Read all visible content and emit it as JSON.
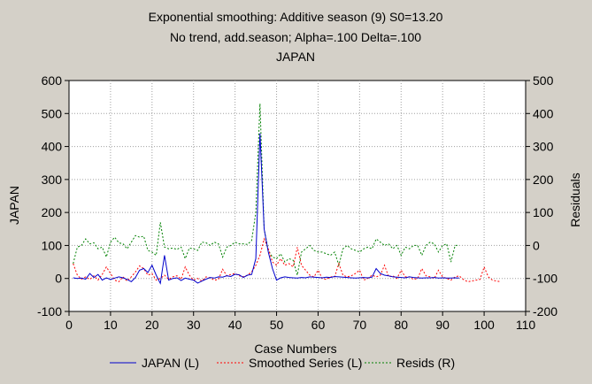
{
  "chart_data": {
    "type": "line",
    "title": "Exponential smoothing: Additive season (9) S0=13.20",
    "subtitle": "No trend, add.season; Alpha=.100  Delta=.100",
    "subtitle2": "JAPAN",
    "xlabel": "Case Numbers",
    "ylabel": "JAPAN",
    "ylabel_right": "Residuals",
    "xlim": [
      0,
      110
    ],
    "ylim": [
      -100,
      600
    ],
    "ylim_right": [
      -200,
      500
    ],
    "x_ticks": [
      0,
      10,
      20,
      30,
      40,
      50,
      60,
      70,
      80,
      90,
      100,
      110
    ],
    "y_ticks": [
      -100,
      0,
      100,
      200,
      300,
      400,
      500,
      600
    ],
    "y_ticks_right": [
      -200,
      -100,
      0,
      100,
      200,
      300,
      400,
      500
    ],
    "grid": true,
    "legend_position": "bottom",
    "series": [
      {
        "name": "JAPAN (L)",
        "axis": "left",
        "color": "#0000cc",
        "style": "solid",
        "x": [
          1,
          2,
          3,
          4,
          5,
          6,
          7,
          8,
          9,
          10,
          11,
          12,
          13,
          14,
          15,
          16,
          17,
          18,
          19,
          20,
          21,
          22,
          23,
          24,
          25,
          26,
          27,
          28,
          29,
          30,
          31,
          32,
          33,
          34,
          35,
          36,
          37,
          38,
          39,
          40,
          41,
          42,
          43,
          44,
          45,
          46,
          47,
          48,
          49,
          50,
          51,
          52,
          53,
          54,
          55,
          56,
          57,
          58,
          59,
          60,
          61,
          62,
          63,
          64,
          65,
          66,
          67,
          68,
          69,
          70,
          71,
          72,
          73,
          74,
          75,
          76,
          77,
          78,
          79,
          80,
          81,
          82,
          83,
          84,
          85,
          86,
          87,
          88,
          89,
          90,
          91,
          92,
          93,
          94
        ],
        "y": [
          2,
          0,
          1,
          -2,
          15,
          3,
          12,
          -5,
          2,
          -3,
          1,
          5,
          2,
          -3,
          -10,
          3,
          25,
          30,
          18,
          40,
          10,
          -15,
          70,
          -5,
          0,
          2,
          -6,
          1,
          -2,
          -5,
          -14,
          -8,
          -2,
          3,
          1,
          5,
          4,
          8,
          6,
          13,
          11,
          3,
          10,
          12,
          60,
          440,
          150,
          80,
          30,
          -5,
          2,
          5,
          3,
          2,
          1,
          3,
          2,
          5,
          4,
          3,
          2,
          4,
          3,
          6,
          5,
          4,
          3,
          2,
          1,
          2,
          3,
          2,
          4,
          30,
          15,
          10,
          8,
          5,
          4,
          3,
          2,
          5,
          3,
          2,
          1,
          2,
          2,
          3,
          1,
          2,
          1,
          1,
          2,
          1
        ]
      },
      {
        "name": "Smoothed Series (L)",
        "axis": "left",
        "color": "#ff0000",
        "style": "dotted",
        "x": [
          1,
          2,
          3,
          4,
          5,
          6,
          7,
          8,
          9,
          10,
          11,
          12,
          13,
          14,
          15,
          16,
          17,
          18,
          19,
          20,
          21,
          22,
          23,
          24,
          25,
          26,
          27,
          28,
          29,
          30,
          31,
          32,
          33,
          34,
          35,
          36,
          37,
          38,
          39,
          40,
          41,
          42,
          43,
          44,
          45,
          46,
          47,
          48,
          49,
          50,
          51,
          52,
          53,
          54,
          55,
          56,
          57,
          58,
          59,
          60,
          61,
          62,
          63,
          64,
          65,
          66,
          67,
          68,
          69,
          70,
          71,
          72,
          73,
          74,
          75,
          76,
          77,
          78,
          79,
          80,
          81,
          82,
          83,
          84,
          85,
          86,
          87,
          88,
          89,
          90,
          91,
          92,
          93,
          94,
          95,
          96,
          97,
          98,
          99,
          100,
          101,
          102,
          103,
          104
        ],
        "y": [
          45,
          10,
          -2,
          5,
          -3,
          8,
          -5,
          12,
          35,
          15,
          -5,
          -10,
          5,
          -8,
          5,
          20,
          38,
          30,
          10,
          15,
          -5,
          0,
          10,
          -3,
          5,
          8,
          -2,
          35,
          10,
          -5,
          0,
          -8,
          5,
          2,
          -5,
          -3,
          28,
          8,
          12,
          15,
          8,
          5,
          10,
          20,
          40,
          70,
          120,
          90,
          50,
          40,
          60,
          40,
          45,
          35,
          95,
          40,
          25,
          10,
          5,
          25,
          0,
          -3,
          5,
          5,
          45,
          10,
          5,
          8,
          15,
          25,
          -5,
          0,
          10,
          5,
          10,
          40,
          5,
          8,
          0,
          25,
          5,
          5,
          -3,
          0,
          30,
          8,
          5,
          0,
          25,
          5,
          0,
          -5,
          5,
          8,
          -3,
          -10,
          -8,
          -5,
          -3,
          35,
          5,
          -5,
          -8,
          -10
        ]
      },
      {
        "name": "Resids (R)",
        "axis": "right",
        "color": "#008000",
        "style": "dotted",
        "x": [
          1,
          2,
          3,
          4,
          5,
          6,
          7,
          8,
          9,
          10,
          11,
          12,
          13,
          14,
          15,
          16,
          17,
          18,
          19,
          20,
          21,
          22,
          23,
          24,
          25,
          26,
          27,
          28,
          29,
          30,
          31,
          32,
          33,
          34,
          35,
          36,
          37,
          38,
          39,
          40,
          41,
          42,
          43,
          44,
          45,
          46,
          47,
          48,
          49,
          50,
          51,
          52,
          53,
          54,
          55,
          56,
          57,
          58,
          59,
          60,
          61,
          62,
          63,
          64,
          65,
          66,
          67,
          68,
          69,
          70,
          71,
          72,
          73,
          74,
          75,
          76,
          77,
          78,
          79,
          80,
          81,
          82,
          83,
          84,
          85,
          86,
          87,
          88,
          89,
          90,
          91,
          92,
          93,
          94
        ],
        "y": [
          -55,
          -5,
          0,
          20,
          5,
          8,
          -10,
          -5,
          -35,
          10,
          25,
          8,
          5,
          -10,
          10,
          30,
          25,
          28,
          -15,
          -20,
          -30,
          70,
          -5,
          -10,
          -8,
          -12,
          -5,
          -40,
          -8,
          -10,
          -15,
          10,
          8,
          0,
          10,
          5,
          -35,
          -5,
          0,
          10,
          5,
          5,
          3,
          15,
          100,
          430,
          50,
          -15,
          -35,
          -40,
          -25,
          -50,
          -40,
          -45,
          -90,
          -20,
          -10,
          0,
          -15,
          -20,
          -20,
          -25,
          -30,
          -20,
          -60,
          -10,
          0,
          -10,
          -15,
          -20,
          -10,
          -5,
          -10,
          20,
          10,
          0,
          5,
          -10,
          0,
          -30,
          -5,
          -10,
          0,
          0,
          -30,
          0,
          10,
          5,
          -20,
          0,
          5,
          -50,
          0,
          0
        ]
      }
    ]
  }
}
